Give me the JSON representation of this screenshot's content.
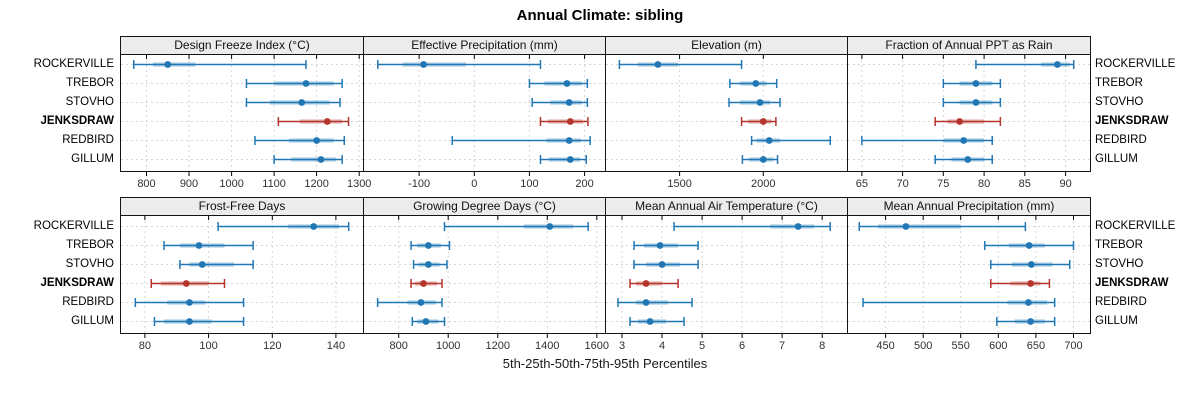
{
  "title": "Annual Climate: sibling",
  "axis_label": "5th-25th-50th-75th-95th Percentiles",
  "stations": [
    "ROCKERVILLE",
    "TREBOR",
    "STOVHO",
    "JENKSDRAW",
    "REDBIRD",
    "GILLUM"
  ],
  "highlight_station": "JENKSDRAW",
  "percentile_levels": [
    "5th",
    "25th",
    "50th",
    "75th",
    "95th"
  ],
  "colors": {
    "series": "#2077b4",
    "highlight": "#b5342c",
    "grid": "#d5d5d5",
    "header_bg": "#ececec",
    "border": "#141414",
    "tick_text": "#303030"
  },
  "chart_data": [
    {
      "type": "dotplot",
      "title": "Design Freeze Index (°C)",
      "xlim": [
        740,
        1309
      ],
      "ticks": [
        800,
        900,
        1000,
        1100,
        1200,
        1300
      ],
      "series": [
        {
          "station": "ROCKERVILLE",
          "percentiles": [
            770,
            815,
            850,
            915,
            1175
          ]
        },
        {
          "station": "TREBOR",
          "percentiles": [
            1035,
            1100,
            1175,
            1240,
            1260
          ]
        },
        {
          "station": "STOVHO",
          "percentiles": [
            1035,
            1090,
            1165,
            1230,
            1255
          ]
        },
        {
          "station": "JENKSDRAW",
          "percentiles": [
            1110,
            1160,
            1225,
            1260,
            1275
          ]
        },
        {
          "station": "REDBIRD",
          "percentiles": [
            1055,
            1135,
            1200,
            1240,
            1265
          ]
        },
        {
          "station": "GILLUM",
          "percentiles": [
            1100,
            1140,
            1210,
            1245,
            1260
          ]
        }
      ]
    },
    {
      "type": "dotplot",
      "title": "Effective Precipitation (mm)",
      "xlim": [
        -200,
        237
      ],
      "ticks": [
        -100,
        0,
        100,
        200
      ],
      "series": [
        {
          "station": "ROCKERVILLE",
          "percentiles": [
            -175,
            -130,
            -92,
            -15,
            120
          ]
        },
        {
          "station": "TREBOR",
          "percentiles": [
            100,
            127,
            168,
            195,
            205
          ]
        },
        {
          "station": "STOVHO",
          "percentiles": [
            105,
            138,
            172,
            195,
            205
          ]
        },
        {
          "station": "JENKSDRAW",
          "percentiles": [
            120,
            133,
            174,
            197,
            206
          ]
        },
        {
          "station": "REDBIRD",
          "percentiles": [
            -40,
            131,
            172,
            193,
            210
          ]
        },
        {
          "station": "GILLUM",
          "percentiles": [
            120,
            135,
            174,
            192,
            203
          ]
        }
      ]
    },
    {
      "type": "dotplot",
      "title": "Elevation (m)",
      "xlim": [
        1060,
        2500
      ],
      "ticks": [
        1500,
        2000
      ],
      "series": [
        {
          "station": "ROCKERVILLE",
          "percentiles": [
            1140,
            1250,
            1370,
            1490,
            1870
          ]
        },
        {
          "station": "TREBOR",
          "percentiles": [
            1800,
            1860,
            1955,
            2020,
            2080
          ]
        },
        {
          "station": "STOVHO",
          "percentiles": [
            1795,
            1860,
            1980,
            2040,
            2100
          ]
        },
        {
          "station": "JENKSDRAW",
          "percentiles": [
            1870,
            1910,
            2000,
            2050,
            2075
          ]
        },
        {
          "station": "REDBIRD",
          "percentiles": [
            1930,
            1960,
            2035,
            2100,
            2400
          ]
        },
        {
          "station": "GILLUM",
          "percentiles": [
            1875,
            1915,
            2000,
            2060,
            2085
          ]
        }
      ]
    },
    {
      "type": "dotplot",
      "title": "Fraction of Annual PPT as Rain",
      "xlim": [
        63.3,
        93
      ],
      "ticks": [
        65,
        70,
        75,
        80,
        85,
        90
      ],
      "series": [
        {
          "station": "ROCKERVILLE",
          "percentiles": [
            79,
            87,
            89,
            90.5,
            91
          ]
        },
        {
          "station": "TREBOR",
          "percentiles": [
            75,
            77,
            79,
            81,
            82
          ]
        },
        {
          "station": "STOVHO",
          "percentiles": [
            75,
            77,
            79,
            81,
            82
          ]
        },
        {
          "station": "JENKSDRAW",
          "percentiles": [
            74,
            75.5,
            77,
            80,
            82
          ]
        },
        {
          "station": "REDBIRD",
          "percentiles": [
            65,
            75,
            77.5,
            80,
            81
          ]
        },
        {
          "station": "GILLUM",
          "percentiles": [
            74,
            76,
            78,
            80,
            81
          ]
        }
      ]
    },
    {
      "type": "dotplot",
      "title": "Frost-Free Days",
      "xlim": [
        72.5,
        148.5
      ],
      "ticks": [
        80,
        100,
        120,
        140
      ],
      "series": [
        {
          "station": "ROCKERVILLE",
          "percentiles": [
            103,
            125,
            133,
            141,
            144
          ]
        },
        {
          "station": "TREBOR",
          "percentiles": [
            86,
            91,
            97,
            105,
            114
          ]
        },
        {
          "station": "STOVHO",
          "percentiles": [
            91,
            94,
            98,
            108,
            114
          ]
        },
        {
          "station": "JENKSDRAW",
          "percentiles": [
            82,
            85,
            93,
            100,
            105
          ]
        },
        {
          "station": "REDBIRD",
          "percentiles": [
            77,
            87,
            94,
            99,
            111
          ]
        },
        {
          "station": "GILLUM",
          "percentiles": [
            83,
            86,
            94,
            101,
            111
          ]
        }
      ]
    },
    {
      "type": "dotplot",
      "title": "Growing Degree Days (°C)",
      "xlim": [
        660,
        1633
      ],
      "ticks": [
        800,
        1000,
        1200,
        1400,
        1600
      ],
      "series": [
        {
          "station": "ROCKERVILLE",
          "percentiles": [
            985,
            1305,
            1410,
            1505,
            1565
          ]
        },
        {
          "station": "TREBOR",
          "percentiles": [
            850,
            875,
            920,
            970,
            1005
          ]
        },
        {
          "station": "STOVHO",
          "percentiles": [
            860,
            880,
            920,
            965,
            995
          ]
        },
        {
          "station": "JENKSDRAW",
          "percentiles": [
            850,
            867,
            900,
            955,
            975
          ]
        },
        {
          "station": "REDBIRD",
          "percentiles": [
            715,
            835,
            890,
            950,
            975
          ]
        },
        {
          "station": "GILLUM",
          "percentiles": [
            855,
            875,
            910,
            960,
            985
          ]
        }
      ]
    },
    {
      "type": "dotplot",
      "title": "Mean Annual Air Temperature (°C)",
      "xlim": [
        2.6,
        8.62
      ],
      "ticks": [
        3,
        4,
        5,
        6,
        7,
        8
      ],
      "series": [
        {
          "station": "ROCKERVILLE",
          "percentiles": [
            4.3,
            6.7,
            7.4,
            7.8,
            8.2
          ]
        },
        {
          "station": "TREBOR",
          "percentiles": [
            3.3,
            3.55,
            3.95,
            4.4,
            4.9
          ]
        },
        {
          "station": "STOVHO",
          "percentiles": [
            3.3,
            3.6,
            4.0,
            4.45,
            4.9
          ]
        },
        {
          "station": "JENKSDRAW",
          "percentiles": [
            3.2,
            3.35,
            3.6,
            4.0,
            4.4
          ]
        },
        {
          "station": "REDBIRD",
          "percentiles": [
            2.9,
            3.35,
            3.6,
            4.15,
            4.75
          ]
        },
        {
          "station": "GILLUM",
          "percentiles": [
            3.2,
            3.4,
            3.7,
            4.1,
            4.55
          ]
        }
      ]
    },
    {
      "type": "dotplot",
      "title": "Mean Annual Precipitation (mm)",
      "xlim": [
        400,
        722
      ],
      "ticks": [
        450,
        500,
        550,
        600,
        650,
        700
      ],
      "series": [
        {
          "station": "ROCKERVILLE",
          "percentiles": [
            415,
            440,
            477,
            550,
            636
          ]
        },
        {
          "station": "TREBOR",
          "percentiles": [
            582,
            614,
            641,
            662,
            700
          ]
        },
        {
          "station": "STOVHO",
          "percentiles": [
            590,
            618,
            644,
            672,
            695
          ]
        },
        {
          "station": "JENKSDRAW",
          "percentiles": [
            590,
            616,
            643,
            656,
            668
          ]
        },
        {
          "station": "REDBIRD",
          "percentiles": [
            420,
            612,
            640,
            665,
            675
          ]
        },
        {
          "station": "GILLUM",
          "percentiles": [
            598,
            622,
            643,
            662,
            675
          ]
        }
      ]
    }
  ]
}
